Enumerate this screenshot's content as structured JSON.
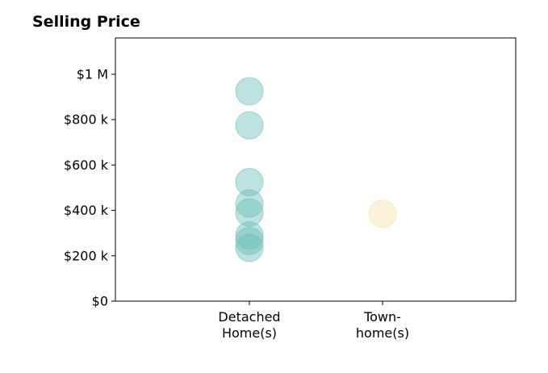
{
  "chart_data": {
    "type": "scatter",
    "title": "Selling Price",
    "categories": [
      "Detached\nHome(s)",
      "Town-\nhome(s)"
    ],
    "y_ticks": [
      {
        "value": 0,
        "label": "$0"
      },
      {
        "value": 200000,
        "label": "$200 k"
      },
      {
        "value": 400000,
        "label": "$400 k"
      },
      {
        "value": 600000,
        "label": "$600 k"
      },
      {
        "value": 800000,
        "label": "$800 k"
      },
      {
        "value": 1000000,
        "label": "$1 M"
      }
    ],
    "ylim": [
      0,
      1160000
    ],
    "grid": false,
    "series": [
      {
        "category_index": 0,
        "color": "#6dbfb8",
        "values": [
          925000,
          775000,
          525000,
          430000,
          390000,
          290000,
          265000,
          235000
        ]
      },
      {
        "category_index": 1,
        "color": "#f5dfa8",
        "values": [
          385000
        ]
      }
    ]
  }
}
